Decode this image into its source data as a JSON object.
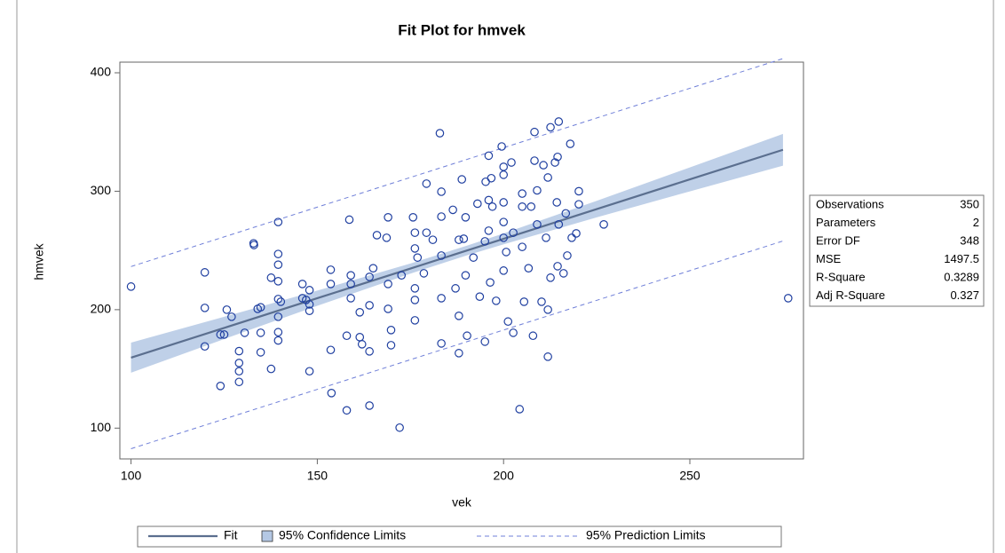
{
  "chart_data": {
    "type": "scatter",
    "title": "Fit Plot for hmvek",
    "x_label": "vek",
    "y_label": "hmvek",
    "xlim": [
      97,
      280.5
    ],
    "ylim": [
      74,
      409
    ],
    "xticks": [
      100,
      150,
      200,
      250
    ],
    "yticks": [
      100,
      200,
      300,
      400
    ],
    "legend": "bottom",
    "points": {
      "color": "#1f3fa0",
      "x": [
        100,
        119.8,
        119.8,
        119.8,
        124,
        124,
        125,
        125.7,
        127,
        129,
        129,
        129,
        129,
        130.5,
        132.9,
        133,
        134,
        134.8,
        134.8,
        134.8,
        137.6,
        137.6,
        139.5,
        139.5,
        139.5,
        139.5,
        139.5,
        139.5,
        139.5,
        139.5,
        140.2,
        146,
        146,
        147,
        147.9,
        147.9,
        147.9,
        147.9,
        153.6,
        153.6,
        153.6,
        153.8,
        157.9,
        157.9,
        158.6,
        159,
        159,
        159,
        161.4,
        161.4,
        162,
        164,
        164,
        164,
        164,
        165,
        166,
        168.6,
        169,
        169,
        169,
        169.8,
        169.8,
        172.1,
        172.6,
        175.7,
        176.2,
        176.2,
        176.2,
        176.2,
        176.2,
        176.9,
        178.6,
        179.3,
        179.3,
        181,
        182.9,
        183.3,
        183.3,
        183.3,
        183.3,
        183.3,
        186.4,
        187.1,
        188,
        188,
        188,
        188.8,
        189.3,
        189.8,
        189.8,
        190.2,
        191.9,
        193,
        193.6,
        195,
        195,
        195.2,
        196,
        196,
        196,
        196.4,
        196.7,
        197,
        198,
        199.5,
        200,
        200,
        200,
        200,
        200,
        200,
        200.7,
        201.2,
        202.1,
        202.6,
        202.6,
        204.3,
        205,
        205,
        205,
        205.5,
        206.7,
        207.4,
        207.9,
        208.3,
        208.3,
        209,
        209,
        210.2,
        210.7,
        211.4,
        211.9,
        211.9,
        211.9,
        212.6,
        212.6,
        213.8,
        214.3,
        214.5,
        214.8,
        214.5,
        214.8,
        216.1,
        216.7,
        217.1,
        217.9,
        218.3,
        219.5,
        220.2,
        220.2,
        226.9,
        276.4
      ],
      "y": [
        219.5,
        231.5,
        201.5,
        169,
        135.6,
        179,
        179,
        200,
        194,
        155,
        139,
        148,
        165,
        180.5,
        256,
        254.6,
        200.7,
        202,
        180.5,
        164,
        227,
        150,
        274,
        247,
        238,
        224,
        209,
        194,
        181,
        174,
        206.7,
        221.7,
        209.7,
        208.2,
        216.5,
        204.5,
        199,
        148,
        233.7,
        221.7,
        166,
        129.6,
        178,
        115,
        276,
        229,
        221.7,
        209.7,
        197.8,
        176.8,
        170.8,
        119,
        203.7,
        227.7,
        164.8,
        235,
        262.9,
        260.7,
        278,
        221.7,
        200.7,
        182.8,
        170,
        100.4,
        229,
        278,
        251.7,
        218,
        208.2,
        191,
        265,
        244,
        230.7,
        265,
        306.4,
        259,
        349,
        278.6,
        245.7,
        209.7,
        171.5,
        299.6,
        284.3,
        218,
        194.8,
        163.3,
        259,
        310,
        259.9,
        278,
        229,
        178,
        244,
        289.5,
        211,
        257.7,
        173,
        308,
        330,
        292.5,
        266.7,
        223,
        311,
        287,
        207.5,
        337.8,
        233,
        260.7,
        274,
        313.9,
        320.6,
        290.6,
        248.7,
        190,
        324.3,
        265,
        180.5,
        116,
        298,
        253,
        287,
        206.7,
        235,
        287,
        178,
        350,
        325.8,
        272,
        300.7,
        206.7,
        322,
        260.7,
        160.3,
        200,
        311.6,
        354,
        227,
        324.3,
        290.6,
        236.7,
        358.8,
        329,
        272,
        230.7,
        281.3,
        245.7,
        340,
        260.7,
        264.4,
        289,
        300,
        272,
        209.7
      ]
    },
    "series": [
      {
        "name": "Fit",
        "color": "#5b6f8f",
        "x": [
          100,
          125,
          150,
          175,
          190,
          200,
          225,
          250,
          275
        ],
        "y": [
          159.5,
          184.6,
          209.7,
          234.7,
          249.8,
          259.8,
          284.9,
          310,
          335
        ]
      },
      {
        "name": "95% Confidence Limits",
        "color": "#b4c8e4",
        "x": [
          100,
          125,
          150,
          175,
          190,
          200,
          225,
          250,
          275
        ],
        "lower": [
          146.8,
          175.2,
          203.3,
          230.4,
          245.7,
          255.2,
          277.9,
          299.9,
          321.6
        ],
        "upper": [
          172.2,
          194,
          216.1,
          239,
          253.9,
          264.4,
          291.9,
          320.1,
          348.4
        ]
      },
      {
        "name": "95% Prediction Limits",
        "color": "#6f7fd8",
        "x": [
          100,
          275
        ],
        "lower": [
          82.6,
          258
        ],
        "upper": [
          236.4,
          412
        ]
      }
    ],
    "statistics": [
      [
        "Observations",
        350
      ],
      [
        "Parameters",
        2
      ],
      [
        "Error DF",
        348
      ],
      [
        "MSE",
        1497.5
      ],
      [
        "R-Square",
        0.3289
      ],
      [
        "Adj R-Square",
        0.327
      ]
    ]
  }
}
